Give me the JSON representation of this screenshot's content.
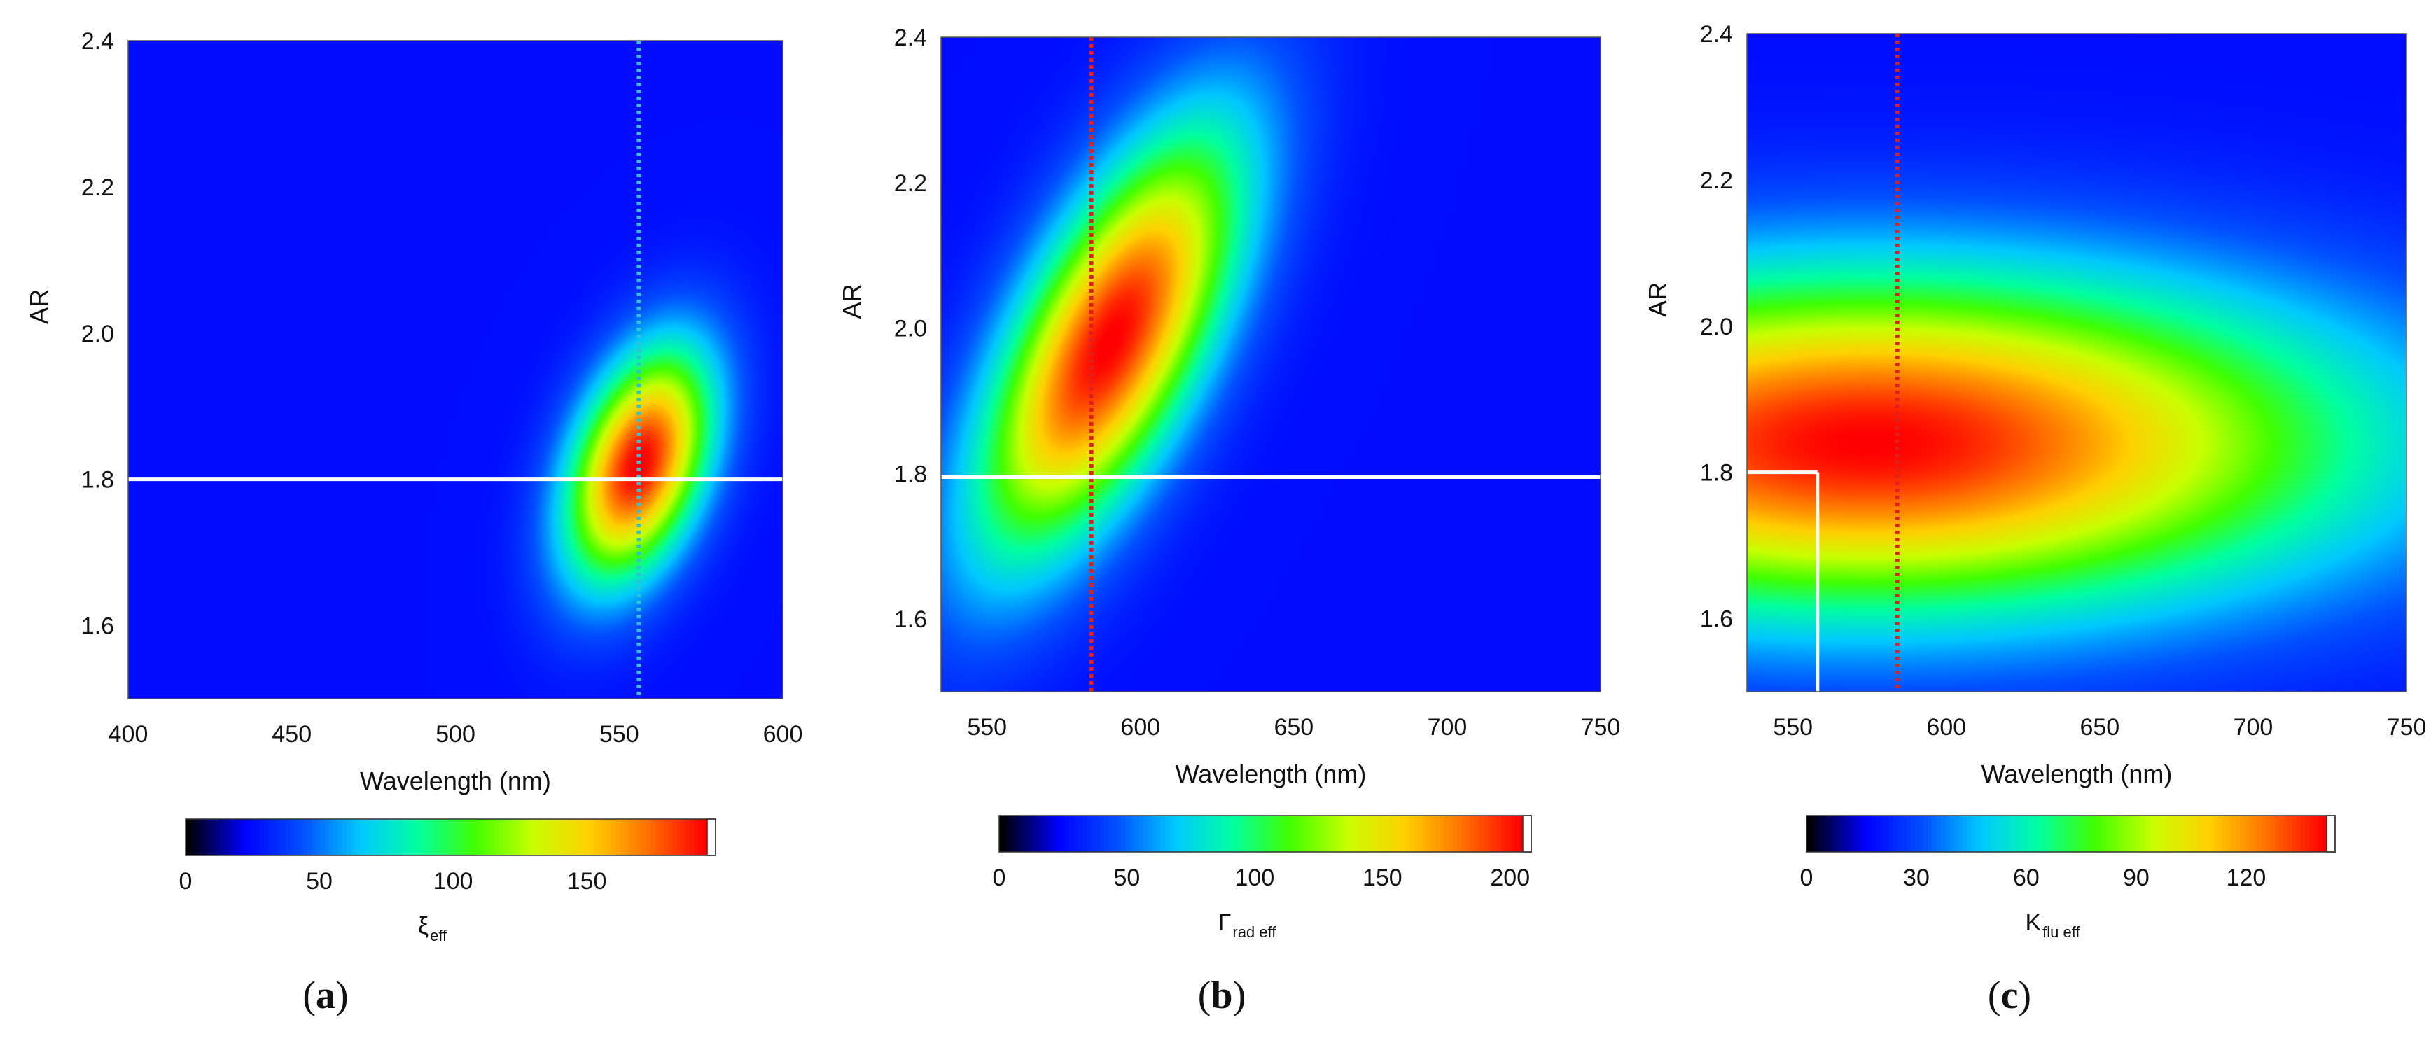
{
  "chart_data": [
    {
      "type": "heatmap",
      "panel_label": "a",
      "xlabel": "Wavelength (nm)",
      "ylabel": "AR",
      "xlim": [
        400,
        600
      ],
      "ylim": [
        1.5,
        2.4
      ],
      "xticks": [
        400,
        450,
        500,
        550,
        600
      ],
      "yticks": [
        1.6,
        1.8,
        2.0,
        2.2,
        2.4
      ],
      "colorbar": {
        "title_main": "ξ",
        "title_sub": "eff",
        "range": [
          0,
          195
        ],
        "ticks": [
          0,
          50,
          100,
          150
        ]
      },
      "peak": {
        "x": 556,
        "y": 1.82,
        "value": 190
      },
      "ridge": {
        "x_at_ymin": 535,
        "x_at_ymax": 585,
        "sigma_x": 14,
        "sigma_y": 0.11
      },
      "marker_vertical": {
        "x": 556,
        "color": "#2ec4d6",
        "style": "dotted"
      },
      "marker_horizontal": {
        "y": 1.8,
        "x_from": 400,
        "x_to": 600,
        "color": "#ffffff"
      }
    },
    {
      "type": "heatmap",
      "panel_label": "b",
      "xlabel": "Wavelength (nm)",
      "ylabel": "AR",
      "xlim": [
        535,
        750
      ],
      "ylim": [
        1.5,
        2.4
      ],
      "xticks": [
        550,
        600,
        650,
        700,
        750
      ],
      "yticks": [
        1.6,
        1.8,
        2.0,
        2.2,
        2.4
      ],
      "colorbar": {
        "title_main": "Γ",
        "title_sub": "rad eff",
        "range": [
          0,
          205
        ],
        "ticks": [
          0,
          50,
          100,
          150,
          200
        ]
      },
      "peak": {
        "x": 590,
        "y": 1.98,
        "value": 200
      },
      "ridge": {
        "x_at_ymin": 552,
        "x_at_ymax": 640,
        "sigma_x": 22,
        "sigma_y": 0.2
      },
      "marker_vertical": {
        "x": 584,
        "color": "#e0201c",
        "style": "dotted"
      },
      "marker_horizontal": {
        "y": 1.795,
        "x_from": 535,
        "x_to": 750,
        "color": "#ffffff"
      }
    },
    {
      "type": "heatmap",
      "panel_label": "c",
      "xlabel": "Wavelength (nm)",
      "ylabel": "AR",
      "xlim": [
        535,
        750
      ],
      "ylim": [
        1.5,
        2.4
      ],
      "xticks": [
        550,
        600,
        650,
        700,
        750
      ],
      "yticks": [
        1.6,
        1.8,
        2.0,
        2.2,
        2.4
      ],
      "colorbar": {
        "title_main": "K",
        "title_sub": "flu eff",
        "range": [
          0,
          142
        ],
        "ticks": [
          0,
          30,
          60,
          90,
          120
        ]
      },
      "peak": {
        "x": 575,
        "y": 1.84,
        "value": 138
      },
      "ridge": {
        "x_at_ymin": 575,
        "x_at_ymax": 575,
        "sigma_x": 110,
        "sigma_y": 0.16
      },
      "marker_vertical": {
        "x": 584,
        "color": "#e0201c",
        "style": "dotted"
      },
      "marker_horizontal": {
        "y": 1.8,
        "x_from": 535,
        "x_to": 558,
        "color": "#ffffff"
      },
      "marker_drop": {
        "x": 558,
        "y_from": 1.5,
        "y_to": 1.8,
        "color": "#ffffff"
      }
    }
  ],
  "colormap": [
    "#000000",
    "#0000ff",
    "#0050ff",
    "#00c8ff",
    "#00ffa0",
    "#40ff00",
    "#c8ff00",
    "#ffd000",
    "#ff7000",
    "#ff0000"
  ]
}
